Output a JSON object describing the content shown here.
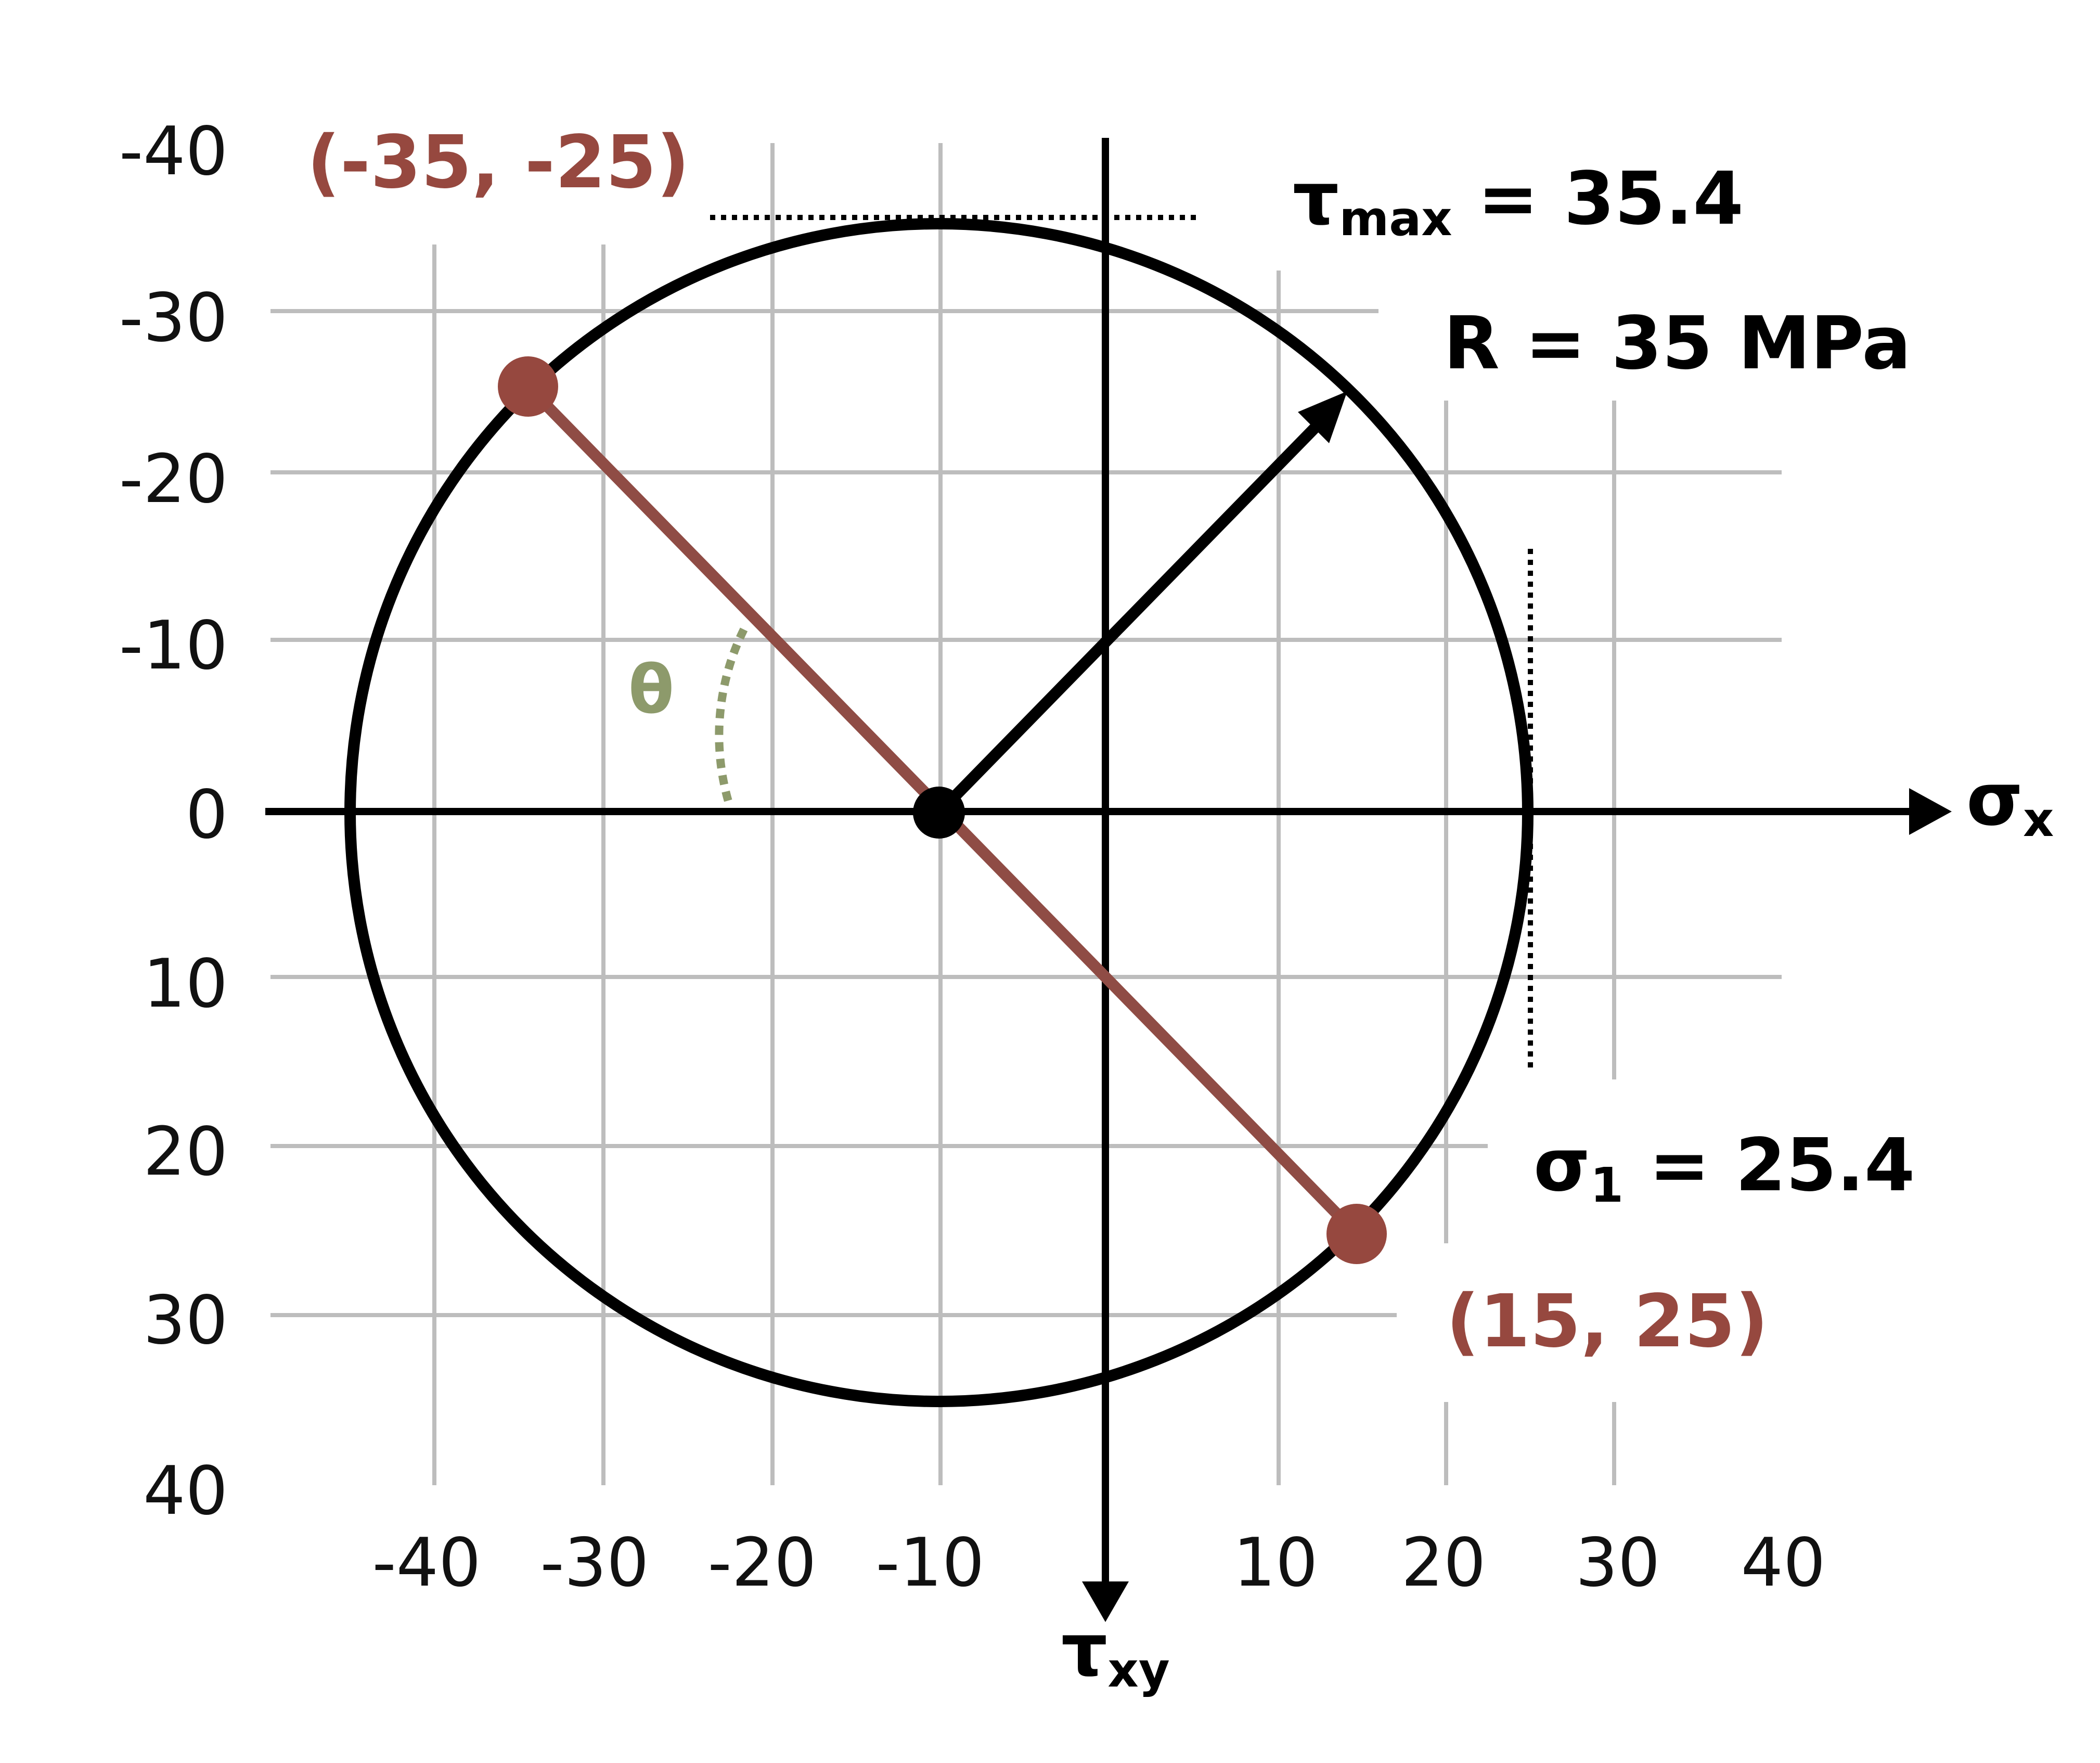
{
  "diagram": {
    "type": "mohr-circle",
    "center": [
      -10,
      0
    ],
    "radius": 35,
    "points": [
      {
        "sigma": -35,
        "tau": -25,
        "label": "(-35, -25)"
      },
      {
        "sigma": 15,
        "tau": 25,
        "label": "(15, 25)"
      }
    ],
    "x_ticks": [
      "-40",
      "-30",
      "-20",
      "-10",
      "10",
      "20",
      "30",
      "40"
    ],
    "y_ticks": [
      "-40",
      "-30",
      "-20",
      "-10",
      "0",
      "10",
      "20",
      "30",
      "40"
    ],
    "axis_x": {
      "symbol": "σ",
      "subscript": "x"
    },
    "axis_y": {
      "symbol": "τ",
      "subscript": "xy"
    },
    "tau_max": {
      "symbol": "τ",
      "subscript": "max",
      "value": " = 35.4"
    },
    "sigma_1": {
      "symbol": "σ",
      "subscript": "1",
      "value": " = 25.4"
    },
    "radius_label": "R = 35 MPa",
    "angle_label": "θ"
  },
  "colors": {
    "point": "#96483f",
    "diameter": "#8f4c45",
    "angle": "#8d9a6b",
    "grid": "#bdbdbd",
    "ink": "#000000"
  }
}
